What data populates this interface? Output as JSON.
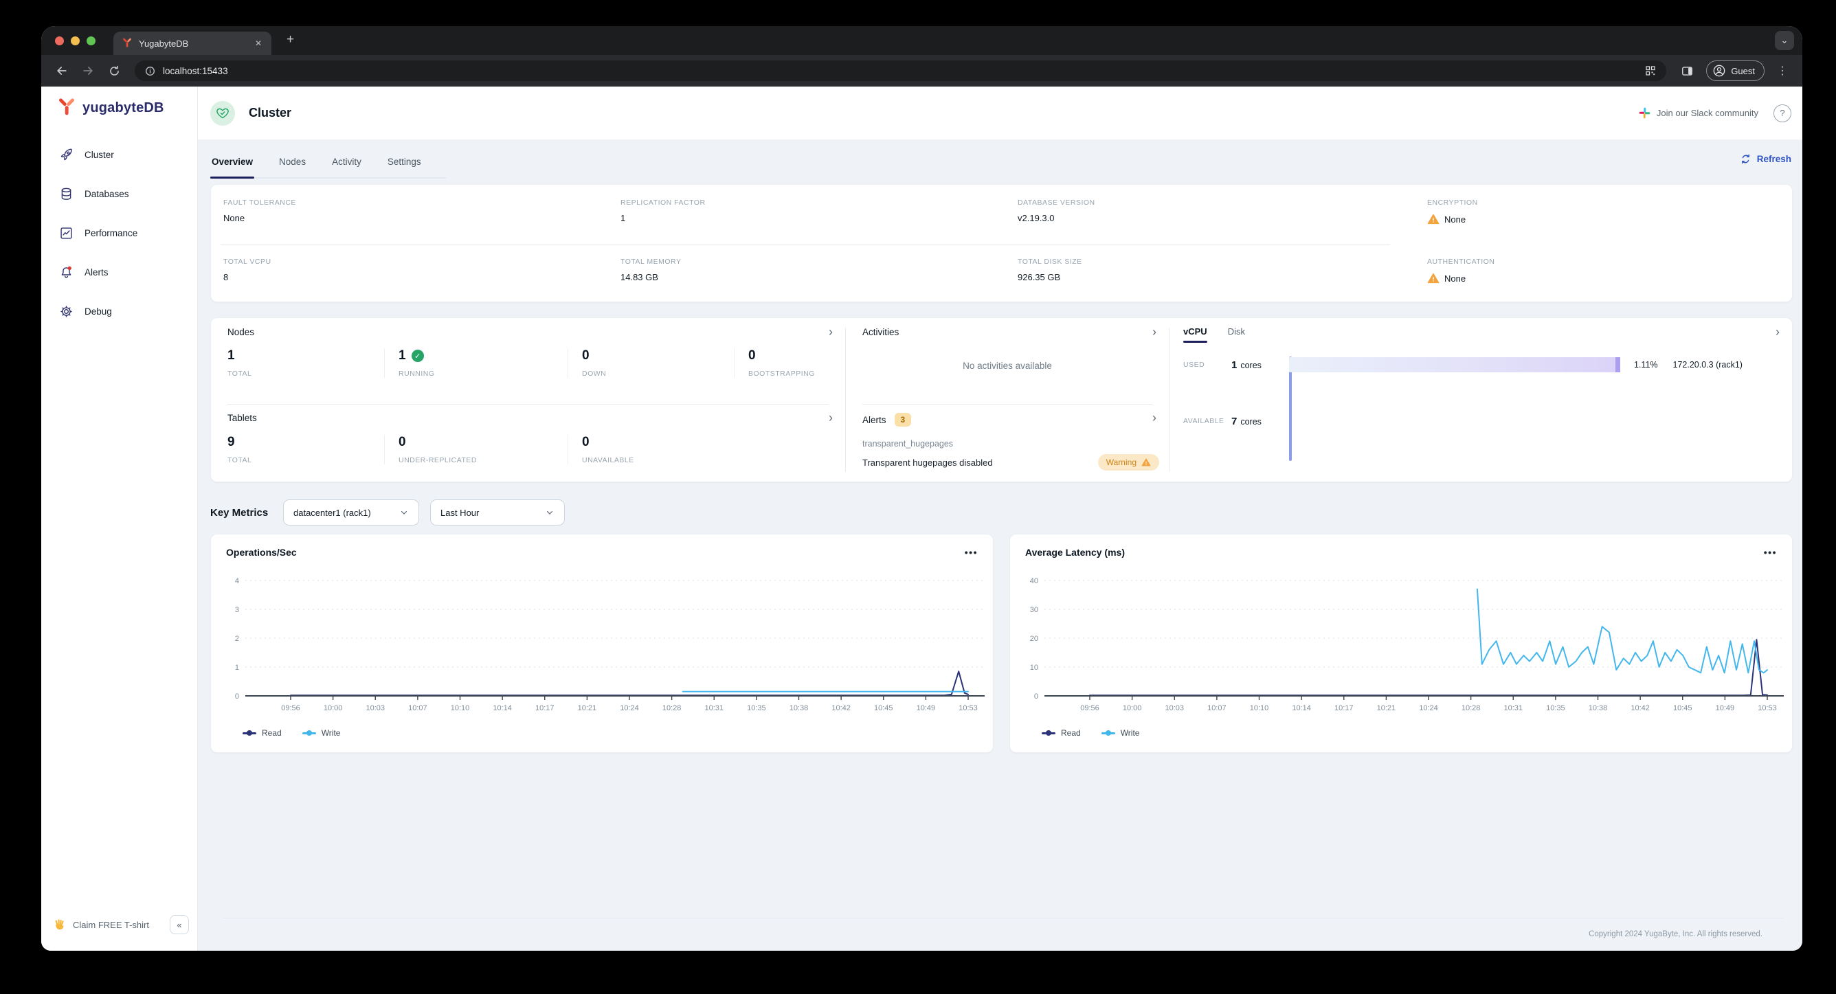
{
  "browser": {
    "tab_title": "YugabyteDB",
    "url": "localhost:15433",
    "guest_label": "Guest"
  },
  "icons": {
    "chevron_right": "›",
    "chevron_down": "⌄",
    "collapse": "«",
    "help": "?",
    "close": "✕",
    "new_tab": "+",
    "kebab": "⋮",
    "more": "•••",
    "check": "✓"
  },
  "sidebar": {
    "brand": "yugabyteDB",
    "items": [
      {
        "label": "Cluster"
      },
      {
        "label": "Databases"
      },
      {
        "label": "Performance"
      },
      {
        "label": "Alerts"
      },
      {
        "label": "Debug"
      }
    ],
    "claim_label": "Claim FREE T-shirt"
  },
  "header": {
    "title": "Cluster",
    "slack_label": "Join our Slack community"
  },
  "nav_tabs": {
    "items": [
      {
        "label": "Overview"
      },
      {
        "label": "Nodes"
      },
      {
        "label": "Activity"
      },
      {
        "label": "Settings"
      }
    ],
    "refresh_label": "Refresh"
  },
  "cluster_info": {
    "cells": [
      {
        "label": "FAULT TOLERANCE",
        "value": "None"
      },
      {
        "label": "REPLICATION FACTOR",
        "value": "1"
      },
      {
        "label": "DATABASE VERSION",
        "value": "v2.19.3.0"
      },
      {
        "label": "ENCRYPTION",
        "value": "None",
        "warning": true
      },
      {
        "label": "TOTAL VCPU",
        "value": "8"
      },
      {
        "label": "TOTAL MEMORY",
        "value": "14.83 GB"
      },
      {
        "label": "TOTAL DISK SIZE",
        "value": "926.35 GB"
      },
      {
        "label": "AUTHENTICATION",
        "value": "None",
        "warning": true
      }
    ]
  },
  "nodes_panel": {
    "title": "Nodes",
    "stats": [
      {
        "value": "1",
        "label": "TOTAL"
      },
      {
        "value": "1",
        "label": "RUNNING",
        "check": true
      },
      {
        "value": "0",
        "label": "DOWN"
      },
      {
        "value": "0",
        "label": "BOOTSTRAPPING"
      }
    ]
  },
  "tablets_panel": {
    "title": "Tablets",
    "stats": [
      {
        "value": "9",
        "label": "TOTAL"
      },
      {
        "value": "0",
        "label": "UNDER-REPLICATED"
      },
      {
        "value": "0",
        "label": "UNAVAILABLE"
      }
    ]
  },
  "activities_panel": {
    "title": "Activities",
    "empty": "No activities available"
  },
  "alerts_panel": {
    "title": "Alerts",
    "count": "3",
    "name": "transparent_hugepages",
    "description": "Transparent hugepages disabled",
    "severity": "Warning"
  },
  "vcpu_panel": {
    "tab_vcpu": "vCPU",
    "tab_disk": "Disk",
    "used_label": "USED",
    "used_cores": "1",
    "cores_unit": "cores",
    "used_percent": "1.11%",
    "node": "172.20.0.3 (rack1)",
    "available_label": "AVAILABLE",
    "available_cores": "7",
    "bar_colors": {
      "axis": "#8C9CE8",
      "fill_start": "#EAF0FA",
      "fill_end": "#DBD3F8",
      "cap": "#ABA0F0"
    }
  },
  "key_metrics": {
    "title": "Key Metrics",
    "region": "datacenter1 (rack1)",
    "range": "Last Hour"
  },
  "chart_data": [
    {
      "type": "line",
      "title": "Operations/Sec",
      "ylim": [
        0,
        4
      ],
      "yticks": [
        0,
        1,
        2,
        3,
        4
      ],
      "xtick_labels": [
        "09:56",
        "10:00",
        "10:03",
        "10:07",
        "10:10",
        "10:14",
        "10:17",
        "10:21",
        "10:24",
        "10:28",
        "10:31",
        "10:35",
        "10:38",
        "10:42",
        "10:45",
        "10:49",
        "10:53"
      ],
      "x_range_minutes": [
        0,
        57
      ],
      "grid": "dotted-horizontal",
      "legend_position": "bottom-left",
      "series": [
        {
          "name": "Read",
          "color": "#2B3479",
          "points": [
            [
              0,
              0.02
            ],
            [
              10,
              0.02
            ],
            [
              20,
              0.02
            ],
            [
              30,
              0.02
            ],
            [
              40,
              0.02
            ],
            [
              50,
              0.02
            ],
            [
              55,
              0.02
            ],
            [
              55.6,
              0.05
            ],
            [
              56.2,
              0.85
            ],
            [
              56.7,
              0.1
            ],
            [
              57,
              0.05
            ]
          ]
        },
        {
          "name": "Write",
          "color": "#43B7EB",
          "points": [
            [
              33,
              0.15
            ],
            [
              40,
              0.15
            ],
            [
              50,
              0.15
            ],
            [
              57,
              0.15
            ]
          ]
        }
      ]
    },
    {
      "type": "line",
      "title": "Average Latency (ms)",
      "ylim": [
        0,
        40
      ],
      "yticks": [
        0,
        10,
        20,
        30,
        40
      ],
      "xtick_labels": [
        "09:56",
        "10:00",
        "10:03",
        "10:07",
        "10:10",
        "10:14",
        "10:17",
        "10:21",
        "10:24",
        "10:28",
        "10:31",
        "10:35",
        "10:38",
        "10:42",
        "10:45",
        "10:49",
        "10:53"
      ],
      "x_range_minutes": [
        0,
        57
      ],
      "grid": "dotted-horizontal",
      "legend_position": "bottom-left",
      "series": [
        {
          "name": "Read",
          "color": "#2B3479",
          "points": [
            [
              0,
              0.2
            ],
            [
              20,
              0.2
            ],
            [
              40,
              0.2
            ],
            [
              55,
              0.2
            ],
            [
              55.6,
              0.3
            ],
            [
              56.1,
              19.5
            ],
            [
              56.6,
              0.4
            ],
            [
              57,
              0.3
            ]
          ]
        },
        {
          "name": "Write",
          "color": "#43B7EB",
          "points": [
            [
              32.6,
              37
            ],
            [
              33,
              11
            ],
            [
              33.6,
              16
            ],
            [
              34.2,
              19
            ],
            [
              34.8,
              11
            ],
            [
              35.4,
              15
            ],
            [
              35.9,
              11
            ],
            [
              36.5,
              14
            ],
            [
              37,
              12
            ],
            [
              37.6,
              15
            ],
            [
              38.1,
              12
            ],
            [
              38.7,
              19
            ],
            [
              39.2,
              11
            ],
            [
              39.8,
              17
            ],
            [
              40.3,
              10
            ],
            [
              40.9,
              12
            ],
            [
              41.4,
              15
            ],
            [
              41.9,
              17
            ],
            [
              42.4,
              11
            ],
            [
              43.1,
              24
            ],
            [
              43.7,
              22
            ],
            [
              44.3,
              9
            ],
            [
              44.9,
              13
            ],
            [
              45.4,
              11
            ],
            [
              45.9,
              15
            ],
            [
              46.4,
              12
            ],
            [
              46.9,
              14
            ],
            [
              47.4,
              19
            ],
            [
              47.9,
              10
            ],
            [
              48.4,
              15
            ],
            [
              48.9,
              12
            ],
            [
              49.4,
              16
            ],
            [
              49.9,
              14
            ],
            [
              50.4,
              10
            ],
            [
              50.9,
              9
            ],
            [
              51.4,
              8
            ],
            [
              51.9,
              17
            ],
            [
              52.4,
              9
            ],
            [
              52.9,
              14
            ],
            [
              53.4,
              8
            ],
            [
              53.9,
              19
            ],
            [
              54.4,
              9
            ],
            [
              54.9,
              18
            ],
            [
              55.4,
              8
            ],
            [
              55.9,
              19
            ],
            [
              56.3,
              9
            ],
            [
              56.7,
              8
            ],
            [
              57,
              9
            ]
          ]
        }
      ]
    }
  ],
  "page_footer": {
    "copyright": "Copyright 2024 YugaByte, Inc. All rights reserved."
  }
}
